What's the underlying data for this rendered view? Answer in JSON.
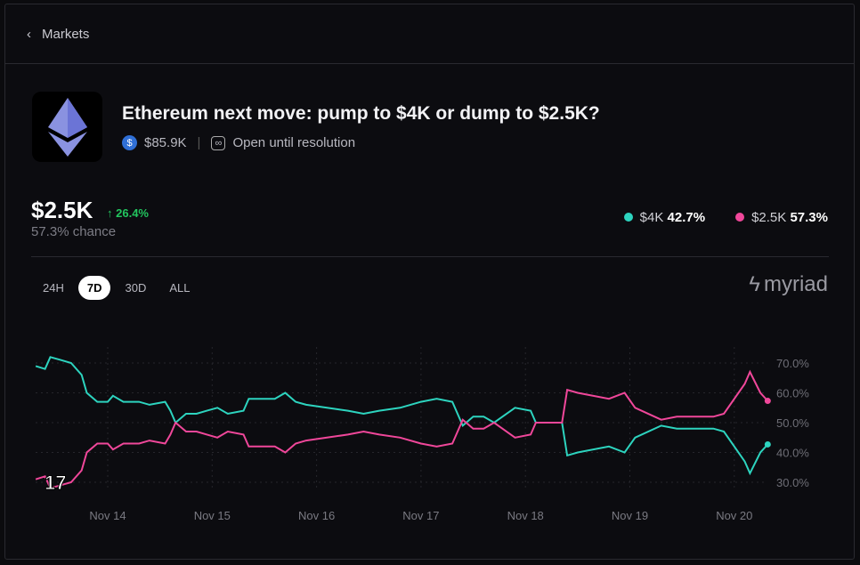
{
  "nav": {
    "back_label": "Markets"
  },
  "market": {
    "title": "Ethereum next move: pump to $4K or dump to $2.5K?",
    "volume": "$85.9K",
    "status": "Open until resolution"
  },
  "summary": {
    "price": "$2.5K",
    "change": "26.4%",
    "chance": "57.3% chance"
  },
  "legend": [
    {
      "label": "$4K",
      "value": "42.7%",
      "color": "#2dd4bf"
    },
    {
      "label": "$2.5K",
      "value": "57.3%",
      "color": "#f0479a"
    }
  ],
  "tabs": [
    {
      "label": "24H"
    },
    {
      "label": "7D",
      "active": true
    },
    {
      "label": "30D"
    },
    {
      "label": "ALL"
    }
  ],
  "brand": "myriad",
  "chart_data": {
    "type": "line",
    "x_ticks": [
      "Nov 14",
      "Nov 15",
      "Nov 16",
      "Nov 17",
      "Nov 18",
      "Nov 19",
      "Nov 20"
    ],
    "y_ticks": [
      "70.0%",
      "60.0%",
      "50.0%",
      "40.0%",
      "30.0%"
    ],
    "ylim": [
      30,
      70
    ],
    "x_unit": "days since Nov 14",
    "series": [
      {
        "name": "$4K",
        "color": "#2dd4bf",
        "points": [
          [
            -0.69,
            69
          ],
          [
            -0.6,
            68
          ],
          [
            -0.55,
            72
          ],
          [
            -0.45,
            71
          ],
          [
            -0.35,
            70
          ],
          [
            -0.25,
            66
          ],
          [
            -0.2,
            60
          ],
          [
            -0.1,
            57
          ],
          [
            0,
            57
          ],
          [
            0.05,
            59
          ],
          [
            0.15,
            57
          ],
          [
            0.3,
            57
          ],
          [
            0.4,
            56
          ],
          [
            0.55,
            57
          ],
          [
            0.6,
            54
          ],
          [
            0.65,
            50
          ],
          [
            0.75,
            53
          ],
          [
            0.85,
            53
          ],
          [
            0.95,
            54
          ],
          [
            1.05,
            55
          ],
          [
            1.15,
            53
          ],
          [
            1.3,
            54
          ],
          [
            1.35,
            58
          ],
          [
            1.6,
            58
          ],
          [
            1.7,
            60
          ],
          [
            1.8,
            57
          ],
          [
            1.9,
            56
          ],
          [
            2.1,
            55
          ],
          [
            2.3,
            54
          ],
          [
            2.45,
            53
          ],
          [
            2.6,
            54
          ],
          [
            2.8,
            55
          ],
          [
            3.0,
            57
          ],
          [
            3.15,
            58
          ],
          [
            3.3,
            57
          ],
          [
            3.4,
            49
          ],
          [
            3.5,
            52
          ],
          [
            3.6,
            52
          ],
          [
            3.7,
            50
          ],
          [
            3.9,
            55
          ],
          [
            4.05,
            54
          ],
          [
            4.1,
            50
          ],
          [
            4.35,
            50
          ],
          [
            4.4,
            39
          ],
          [
            4.5,
            40
          ],
          [
            4.8,
            42
          ],
          [
            4.95,
            40
          ],
          [
            5.05,
            45
          ],
          [
            5.3,
            49
          ],
          [
            5.45,
            48
          ],
          [
            5.8,
            48
          ],
          [
            5.9,
            47
          ],
          [
            6.1,
            37
          ],
          [
            6.15,
            33
          ],
          [
            6.25,
            40
          ],
          [
            6.32,
            42.7
          ]
        ]
      },
      {
        "name": "$2.5K",
        "color": "#f0479a",
        "points": [
          [
            -0.69,
            31
          ],
          [
            -0.6,
            32
          ],
          [
            -0.55,
            28
          ],
          [
            -0.45,
            29
          ],
          [
            -0.35,
            30
          ],
          [
            -0.25,
            34
          ],
          [
            -0.2,
            40
          ],
          [
            -0.1,
            43
          ],
          [
            0,
            43
          ],
          [
            0.05,
            41
          ],
          [
            0.15,
            43
          ],
          [
            0.3,
            43
          ],
          [
            0.4,
            44
          ],
          [
            0.55,
            43
          ],
          [
            0.6,
            46
          ],
          [
            0.65,
            50
          ],
          [
            0.75,
            47
          ],
          [
            0.85,
            47
          ],
          [
            0.95,
            46
          ],
          [
            1.05,
            45
          ],
          [
            1.15,
            47
          ],
          [
            1.3,
            46
          ],
          [
            1.35,
            42
          ],
          [
            1.6,
            42
          ],
          [
            1.7,
            40
          ],
          [
            1.8,
            43
          ],
          [
            1.9,
            44
          ],
          [
            2.1,
            45
          ],
          [
            2.3,
            46
          ],
          [
            2.45,
            47
          ],
          [
            2.6,
            46
          ],
          [
            2.8,
            45
          ],
          [
            3.0,
            43
          ],
          [
            3.15,
            42
          ],
          [
            3.3,
            43
          ],
          [
            3.4,
            51
          ],
          [
            3.5,
            48
          ],
          [
            3.6,
            48
          ],
          [
            3.7,
            50
          ],
          [
            3.9,
            45
          ],
          [
            4.05,
            46
          ],
          [
            4.1,
            50
          ],
          [
            4.35,
            50
          ],
          [
            4.4,
            61
          ],
          [
            4.5,
            60
          ],
          [
            4.8,
            58
          ],
          [
            4.95,
            60
          ],
          [
            5.05,
            55
          ],
          [
            5.3,
            51
          ],
          [
            5.45,
            52
          ],
          [
            5.8,
            52
          ],
          [
            5.9,
            53
          ],
          [
            6.1,
            63
          ],
          [
            6.15,
            67
          ],
          [
            6.25,
            60
          ],
          [
            6.32,
            57.3
          ]
        ]
      }
    ]
  }
}
